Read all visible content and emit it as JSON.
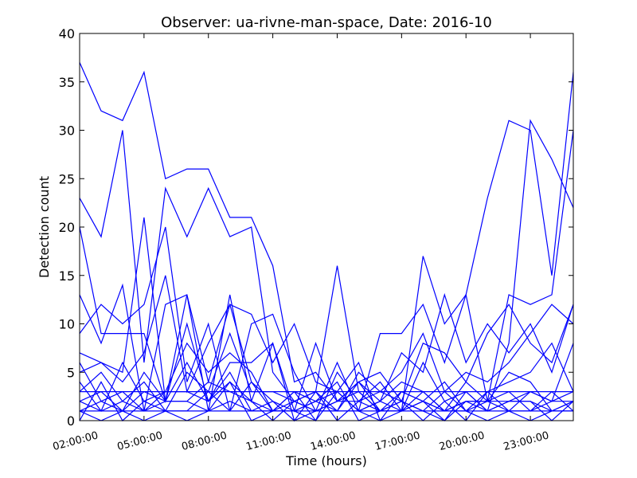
{
  "chart_data": {
    "type": "line",
    "title": "Observer: ua-rivne-man-space, Date: 2016-10",
    "xlabel": "Time (hours)",
    "ylabel": "Detection count",
    "ylim": [
      0,
      40
    ],
    "yticks": [
      0,
      5,
      10,
      15,
      20,
      25,
      30,
      35,
      40
    ],
    "xlim": [
      2,
      25
    ],
    "xticks": [
      2,
      5,
      8,
      11,
      14,
      17,
      20,
      23
    ],
    "xtick_labels": [
      "02:00:00",
      "05:00:00",
      "08:00:00",
      "11:00:00",
      "14:00:00",
      "17:00:00",
      "20:00:00",
      "23:00:00"
    ],
    "grid": false,
    "legend": "none",
    "line_color": "#0000ff",
    "x": [
      2,
      3,
      4,
      5,
      6,
      7,
      8,
      9,
      10,
      11,
      12,
      13,
      14,
      15,
      16,
      17,
      18,
      19,
      20,
      21,
      22,
      23,
      24,
      25
    ],
    "series": [
      {
        "values": [
          37,
          32,
          31,
          36,
          25,
          26,
          26,
          21,
          21,
          16,
          4,
          5,
          2,
          4,
          1,
          2,
          1,
          0,
          2,
          1,
          8,
          31,
          27,
          22
        ]
      },
      {
        "values": [
          23,
          19,
          30,
          6,
          24,
          19,
          24,
          19,
          20,
          5,
          2,
          3,
          16,
          3,
          1,
          1,
          17,
          10,
          13,
          23,
          31,
          30,
          15,
          36
        ]
      },
      {
        "values": [
          20,
          9,
          9,
          9,
          2,
          13,
          4,
          12,
          11,
          6,
          10,
          4,
          3,
          1,
          9,
          9,
          12,
          6,
          13,
          2,
          13,
          12,
          13,
          30
        ]
      },
      {
        "values": [
          13,
          8,
          14,
          1,
          12,
          13,
          1,
          13,
          2,
          8,
          1,
          8,
          2,
          4,
          5,
          2,
          8,
          7,
          4,
          9,
          12,
          8,
          6,
          12
        ]
      },
      {
        "values": [
          9,
          12,
          10,
          12,
          20,
          4,
          10,
          1,
          10,
          11,
          5,
          1,
          6,
          1,
          2,
          7,
          5,
          13,
          6,
          10,
          7,
          10,
          5,
          12
        ]
      },
      {
        "values": [
          7,
          6,
          5,
          21,
          2,
          10,
          2,
          6,
          6,
          8,
          0,
          3,
          1,
          5,
          3,
          5,
          9,
          3,
          5,
          4,
          6,
          9,
          12,
          10
        ]
      },
      {
        "values": [
          5,
          6,
          4,
          7,
          15,
          3,
          8,
          12,
          4,
          2,
          1,
          2,
          3,
          6,
          0,
          3,
          2,
          4,
          1,
          3,
          4,
          5,
          8,
          3
        ]
      },
      {
        "values": [
          4,
          1,
          6,
          2,
          3,
          8,
          5,
          7,
          5,
          1,
          3,
          0,
          5,
          2,
          4,
          1,
          6,
          2,
          3,
          1,
          2,
          3,
          2,
          8
        ]
      },
      {
        "values": [
          3,
          5,
          2,
          4,
          1,
          5,
          3,
          9,
          3,
          3,
          2,
          1,
          1,
          4,
          2,
          4,
          3,
          1,
          2,
          2,
          5,
          4,
          1,
          2
        ]
      },
      {
        "values": [
          2,
          3,
          1,
          3,
          2,
          2,
          4,
          3,
          2,
          0,
          2,
          3,
          0,
          2,
          3,
          2,
          1,
          3,
          1,
          2,
          3,
          1,
          3,
          1
        ]
      },
      {
        "values": [
          1,
          2,
          3,
          1,
          3,
          3,
          2,
          5,
          1,
          2,
          0,
          1,
          2,
          3,
          1,
          3,
          2,
          0,
          3,
          1,
          2,
          2,
          0,
          2
        ]
      },
      {
        "values": [
          2,
          1,
          2,
          1,
          2,
          2,
          1,
          2,
          1,
          1,
          1,
          2,
          1,
          1,
          2,
          1,
          2,
          1,
          2,
          2,
          1,
          1,
          2,
          2
        ]
      },
      {
        "values": [
          0,
          4,
          0,
          2,
          1,
          1,
          3,
          1,
          4,
          1,
          3,
          2,
          4,
          0,
          1,
          2,
          0,
          2,
          0,
          3,
          1,
          3,
          2,
          3
        ]
      },
      {
        "values": [
          3,
          3,
          3,
          3,
          3,
          3,
          3,
          3,
          3,
          3,
          3,
          3,
          3,
          3,
          3,
          3,
          3,
          3,
          3,
          3,
          3,
          3,
          3,
          3
        ]
      },
      {
        "values": [
          1,
          0,
          1,
          0,
          1,
          0,
          1,
          4,
          0,
          1,
          1,
          0,
          3,
          1,
          0,
          1,
          3,
          1,
          1,
          0,
          1,
          0,
          1,
          1
        ]
      },
      {
        "values": [
          6,
          2,
          1,
          5,
          2,
          6,
          2,
          4,
          2,
          1,
          2,
          1,
          2,
          2,
          1,
          1,
          2,
          1,
          4,
          2,
          2,
          2,
          1,
          2
        ]
      },
      {
        "values": [
          1,
          1,
          1,
          1,
          1,
          1,
          1,
          1,
          1,
          1,
          1,
          1,
          1,
          1,
          1,
          1,
          1,
          1,
          1,
          1,
          1,
          1,
          1,
          1
        ]
      }
    ]
  }
}
